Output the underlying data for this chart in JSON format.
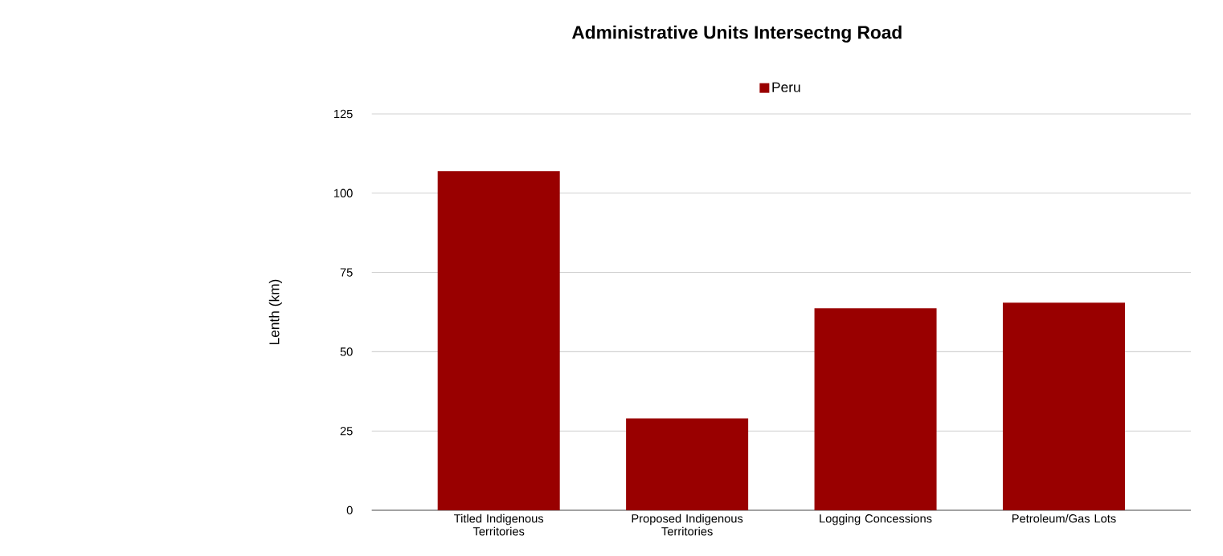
{
  "chart_data": {
    "type": "bar",
    "title": "Administrative Units Intersectng Road",
    "ylabel": "Lenth (km)",
    "categories": [
      "Titled Indigenous Territories",
      "Proposed Indigenous Territories",
      "Logging Concessions",
      "Petroleum/Gas Lots"
    ],
    "series": [
      {
        "name": "Peru",
        "color": "#990000",
        "values": [
          107,
          29,
          63.7,
          65.5
        ]
      }
    ],
    "ylim": [
      0,
      125
    ],
    "yticks": [
      0,
      25,
      50,
      75,
      100,
      125
    ],
    "grid": "y",
    "legend": "top"
  }
}
